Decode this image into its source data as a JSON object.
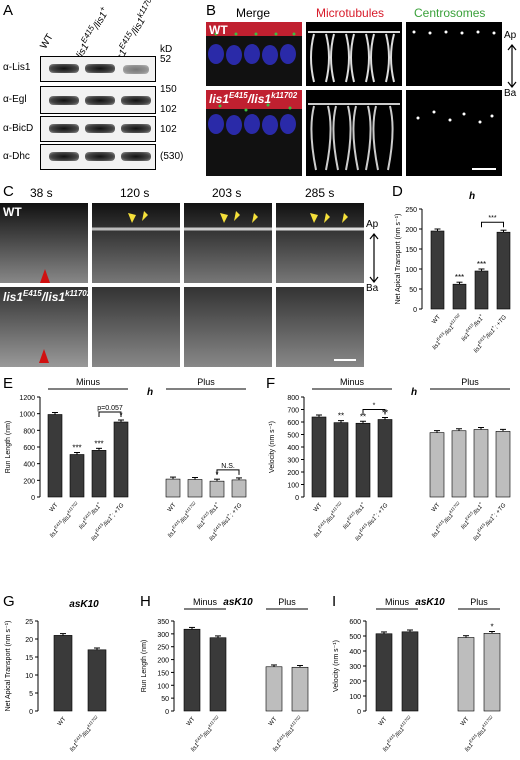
{
  "panels": {
    "A": "A",
    "B": "B",
    "C": "C",
    "D": "D",
    "E": "E",
    "F": "F",
    "G": "G",
    "H": "H",
    "I": "I"
  },
  "panelA": {
    "lanes": [
      "WT",
      "lis1E415/lis1+",
      "lis1E415/lis1k11702"
    ],
    "kd_header": "kD",
    "rows": [
      {
        "label": "α-Lis1",
        "marker": "52"
      },
      {
        "label": "α-Egl",
        "marker": "150",
        "marker2": "102"
      },
      {
        "label": "α-BicD",
        "marker": "102"
      },
      {
        "label": "α-Dhc",
        "marker": "(530)"
      }
    ]
  },
  "panelB": {
    "headers": {
      "merge": "Merge",
      "microtubules": "Microtubules",
      "centrosomes": "Centrosomes"
    },
    "header_colors": {
      "merge": "#000000",
      "microtubules": "#d81b2a",
      "centrosomes": "#3aa13a"
    },
    "row_labels": [
      "WT",
      "lis1E415/lis1k11702"
    ],
    "axis_top": "Ap",
    "axis_bottom": "Ba"
  },
  "panelC": {
    "times": [
      "38 s",
      "120 s",
      "203 s",
      "285 s"
    ],
    "row_labels": [
      "WT",
      "lis1E415/lis1k11702"
    ],
    "axis_top": "Ap",
    "axis_bottom": "Ba"
  },
  "chart_data": [
    {
      "panel": "D",
      "type": "bar",
      "title": "h",
      "ylabel": "Net Apical Transport (nm s⁻¹)",
      "ylim": [
        0,
        250
      ],
      "yticks": [
        0,
        50,
        100,
        150,
        200,
        250
      ],
      "categories": [
        "WT",
        "lis1E415/lis1k11702",
        "lis1E415/lis1+",
        "lis1E415/lis1+; +TG"
      ],
      "values": [
        195,
        62,
        95,
        192
      ],
      "annotations": [
        "",
        "***",
        "***",
        ""
      ],
      "bracket": {
        "from": 2,
        "to": 3,
        "label": "***"
      }
    },
    {
      "panel": "E",
      "type": "bar",
      "title": "h",
      "ylabel": "Run Length (nm)",
      "ylim": [
        0,
        1200
      ],
      "yticks": [
        0,
        200,
        400,
        600,
        800,
        1000,
        1200
      ],
      "groups": [
        {
          "name": "Minus",
          "categories": [
            "WT",
            "lis1E415/lis1k11702",
            "lis1E415/lis1+",
            "lis1E415/lis1+; +TG"
          ],
          "values": [
            990,
            510,
            560,
            900
          ],
          "annotations": [
            "",
            "***",
            "***",
            "*"
          ]
        },
        {
          "name": "Plus",
          "categories": [
            "WT",
            "lis1E415/lis1k11702",
            "lis1E415/lis1+",
            "lis1E415/lis1+; +TG"
          ],
          "values": [
            215,
            210,
            190,
            205
          ],
          "annotations": [
            "",
            "",
            "*",
            ""
          ]
        }
      ],
      "brackets": [
        {
          "group": "Minus",
          "from": 2,
          "to": 3,
          "label": "p=0.057"
        },
        {
          "group": "Plus",
          "from": 2,
          "to": 3,
          "label": "N.S."
        }
      ]
    },
    {
      "panel": "F",
      "type": "bar",
      "title": "h",
      "ylabel": "Velocity (nm s⁻¹)",
      "ylim": [
        0,
        800
      ],
      "yticks": [
        0,
        100,
        200,
        300,
        400,
        500,
        600,
        700,
        800
      ],
      "groups": [
        {
          "name": "Minus",
          "categories": [
            "WT",
            "lis1E415/lis1k11702",
            "lis1E415/lis1+",
            "lis1E415/lis1+; +TG"
          ],
          "values": [
            640,
            595,
            590,
            620
          ],
          "annotations": [
            "",
            "**",
            "**",
            "**"
          ]
        },
        {
          "name": "Plus",
          "categories": [
            "WT",
            "lis1E415/lis1k11702",
            "lis1E415/lis1+",
            "lis1E415/lis1+; +TG"
          ],
          "values": [
            515,
            530,
            540,
            525
          ],
          "annotations": [
            "",
            "",
            "",
            ""
          ]
        }
      ],
      "brackets": [
        {
          "group": "Minus",
          "from": 2,
          "to": 3,
          "label": "*"
        }
      ]
    },
    {
      "panel": "G",
      "type": "bar",
      "title": "asK10",
      "ylabel": "Net Apical Transport (nm s⁻¹)",
      "ylim": [
        0,
        25
      ],
      "yticks": [
        0,
        5,
        10,
        15,
        20,
        25
      ],
      "categories": [
        "WT",
        "lis1E415/lis1k11702"
      ],
      "values": [
        21,
        17
      ]
    },
    {
      "panel": "H",
      "type": "bar",
      "title": "asK10",
      "ylabel": "Run Length (nm)",
      "ylim": [
        0,
        350
      ],
      "yticks": [
        0,
        50,
        100,
        150,
        200,
        250,
        300,
        350
      ],
      "groups": [
        {
          "name": "Minus",
          "categories": [
            "WT",
            "lis1E415/lis1k11702"
          ],
          "values": [
            318,
            285
          ]
        },
        {
          "name": "Plus",
          "categories": [
            "WT",
            "lis1E415/lis1k11702"
          ],
          "values": [
            172,
            170
          ]
        }
      ]
    },
    {
      "panel": "I",
      "type": "bar",
      "title": "asK10",
      "ylabel": "Velocity (nm s⁻¹)",
      "ylim": [
        0,
        600
      ],
      "yticks": [
        0,
        100,
        200,
        300,
        400,
        500,
        600
      ],
      "groups": [
        {
          "name": "Minus",
          "categories": [
            "WT",
            "lis1E415/lis1k11702"
          ],
          "values": [
            515,
            528
          ]
        },
        {
          "name": "Plus",
          "categories": [
            "WT",
            "lis1E415/lis1k11702"
          ],
          "values": [
            490,
            518
          ],
          "annotations": [
            "",
            "*"
          ]
        }
      ]
    }
  ],
  "colors": {
    "dark": "#3a3a3a",
    "light": "#bdbdbd"
  }
}
